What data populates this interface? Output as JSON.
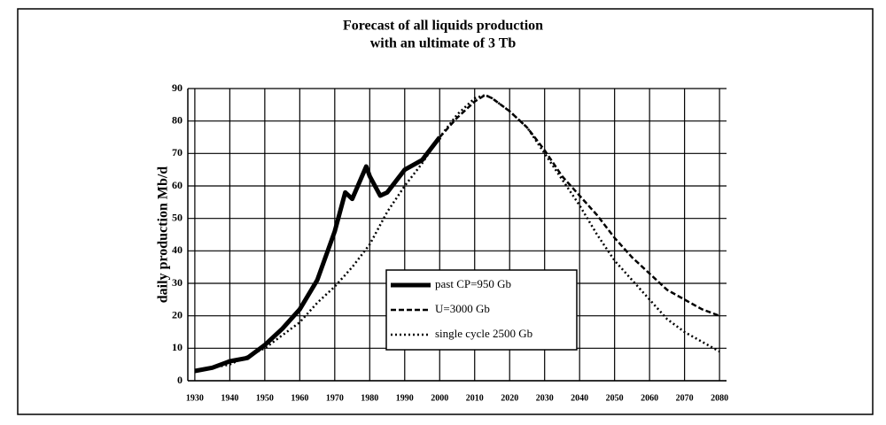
{
  "chart_data": {
    "type": "line",
    "title": [
      "Forecast of all liquids production",
      "with an ultimate of 3 Tb"
    ],
    "ylabel": "daily production Mb/d",
    "xlim": [
      1928,
      2082
    ],
    "ylim": [
      0,
      90
    ],
    "xticks": [
      1930,
      1940,
      1950,
      1960,
      1970,
      1980,
      1990,
      2000,
      2010,
      2020,
      2030,
      2040,
      2050,
      2060,
      2070,
      2080
    ],
    "yticks": [
      0,
      10,
      20,
      30,
      40,
      50,
      60,
      70,
      80,
      90
    ],
    "grid": true,
    "legend_position": "lower center",
    "series": [
      {
        "name": "past  CP=950 Gb",
        "color": "#000000",
        "style": "solid",
        "x": [
          1930,
          1935,
          1940,
          1945,
          1950,
          1955,
          1960,
          1965,
          1970,
          1973,
          1975,
          1979,
          1980,
          1983,
          1985,
          1990,
          1995,
          2000
        ],
        "values": [
          3,
          4,
          6,
          7,
          11,
          16,
          22,
          31,
          46,
          58,
          56,
          66,
          63,
          57,
          58,
          65,
          68,
          75
        ]
      },
      {
        "name": "U=3000 Gb",
        "color": "#000000",
        "style": "dashed",
        "x": [
          2000,
          2005,
          2010,
          2013,
          2015,
          2020,
          2025,
          2030,
          2035,
          2040,
          2045,
          2050,
          2055,
          2060,
          2065,
          2070,
          2075,
          2080
        ],
        "values": [
          75,
          81,
          86,
          88,
          87,
          83,
          78,
          71,
          63,
          57,
          51,
          44,
          38,
          33,
          28,
          25,
          22,
          20
        ]
      },
      {
        "name": "single cycle 2500 Gb",
        "color": "#000000",
        "style": "dotted",
        "x": [
          1930,
          1940,
          1950,
          1960,
          1965,
          1970,
          1975,
          1980,
          1985,
          1990,
          1995,
          2000,
          2005,
          2010,
          2013,
          2015,
          2020,
          2025,
          2030,
          2035,
          2040,
          2045,
          2050,
          2055,
          2060,
          2065,
          2070,
          2075,
          2080
        ],
        "values": [
          3,
          5,
          10,
          18,
          24,
          29,
          35,
          42,
          52,
          60,
          67,
          75,
          82,
          87,
          88,
          87,
          83,
          78,
          70,
          62,
          54,
          45,
          37,
          31,
          25,
          19,
          15,
          12,
          9
        ]
      }
    ]
  }
}
